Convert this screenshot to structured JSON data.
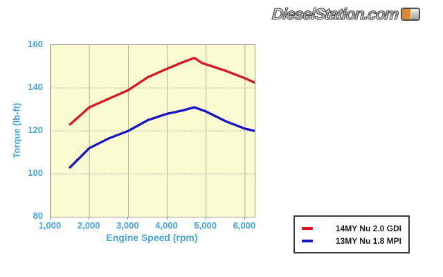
{
  "logo": {
    "text": "DieselStation.com",
    "badge_color": "#e2872b"
  },
  "chart_data": {
    "type": "line",
    "title": "",
    "xlabel": "Engine Speed (rpm)",
    "ylabel": "Torque (lb-ft)",
    "xlim": [
      1000,
      6250
    ],
    "ylim": [
      80,
      160
    ],
    "x_tick_values": [
      1000,
      2000,
      3000,
      4000,
      5000,
      6000
    ],
    "x_tick_labels": [
      "1,000",
      "2,000",
      "3,000",
      "4,000",
      "5,000",
      "6,000"
    ],
    "y_tick_values": [
      160,
      140,
      120,
      100,
      80
    ],
    "y_tick_labels": [
      "160",
      "140",
      "120",
      "100",
      "80"
    ],
    "grid": true,
    "plot_bg": "#fbfbd2",
    "grid_color": "#adada0",
    "axis_label_color": "#45a4dc",
    "legend_position": "outside-bottom-right",
    "series": [
      {
        "name": "14MY Nu 2.0 GDI",
        "color": "#db1420",
        "points": [
          [
            1500,
            123
          ],
          [
            2000,
            131
          ],
          [
            2500,
            135
          ],
          [
            3000,
            139
          ],
          [
            3500,
            145
          ],
          [
            4000,
            149
          ],
          [
            4400,
            152
          ],
          [
            4700,
            154
          ],
          [
            4900,
            151.5
          ],
          [
            5000,
            151
          ],
          [
            5500,
            148
          ],
          [
            6000,
            144.5
          ],
          [
            6250,
            142.5
          ]
        ]
      },
      {
        "name": "13MY Nu 1.8 MPI",
        "color": "#1613c8",
        "points": [
          [
            1500,
            103
          ],
          [
            2000,
            112
          ],
          [
            2500,
            116.5
          ],
          [
            3000,
            120
          ],
          [
            3500,
            125
          ],
          [
            4000,
            128
          ],
          [
            4400,
            129.5
          ],
          [
            4700,
            131
          ],
          [
            5000,
            129
          ],
          [
            5500,
            124.5
          ],
          [
            6000,
            121
          ],
          [
            6250,
            120
          ]
        ]
      }
    ]
  }
}
